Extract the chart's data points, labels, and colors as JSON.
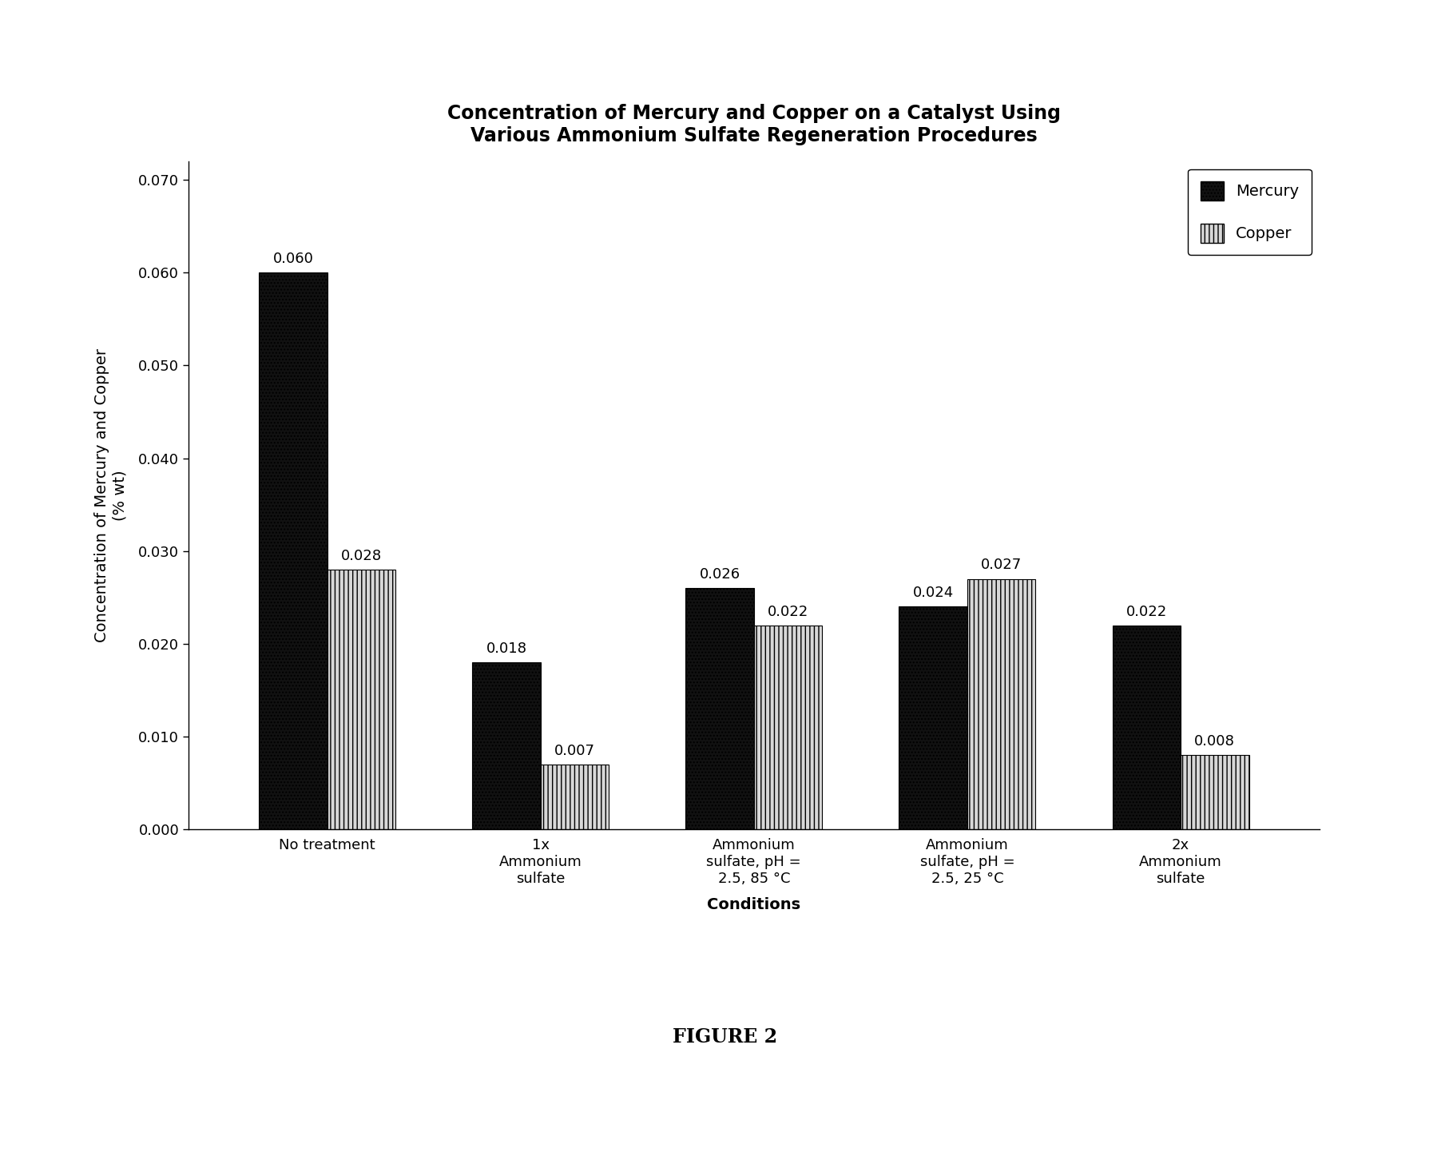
{
  "title": "Concentration of Mercury and Copper on a Catalyst Using\nVarious Ammonium Sulfate Regeneration Procedures",
  "xlabel": "Conditions",
  "ylabel_line1": "Concentration of Mercury and Copper",
  "ylabel_line2": "(% wt)",
  "categories": [
    "No treatment",
    "1x\nAmmonium\nsulfate",
    "Ammonium\nsulfate, pH =\n2.5, 85 °C",
    "Ammonium\nsulfate, pH =\n2.5, 25 °C",
    "2x\nAmmonium\nsulfate"
  ],
  "mercury_values": [
    0.06,
    0.018,
    0.026,
    0.024,
    0.022
  ],
  "copper_values": [
    0.028,
    0.007,
    0.022,
    0.027,
    0.008
  ],
  "mercury_color": "#111111",
  "copper_color": "#d8d8d8",
  "mercury_hatch": "....",
  "copper_hatch": "|||",
  "ylim": [
    0.0,
    0.072
  ],
  "yticks": [
    0.0,
    0.01,
    0.02,
    0.03,
    0.04,
    0.05,
    0.06,
    0.07
  ],
  "bar_width": 0.32,
  "figure_caption": "FIGURE 2",
  "background_color": "#ffffff",
  "legend_mercury": "Mercury",
  "legend_copper": "Copper",
  "title_fontsize": 17,
  "label_fontsize": 14,
  "tick_fontsize": 13,
  "annotation_fontsize": 13,
  "caption_fontsize": 17
}
